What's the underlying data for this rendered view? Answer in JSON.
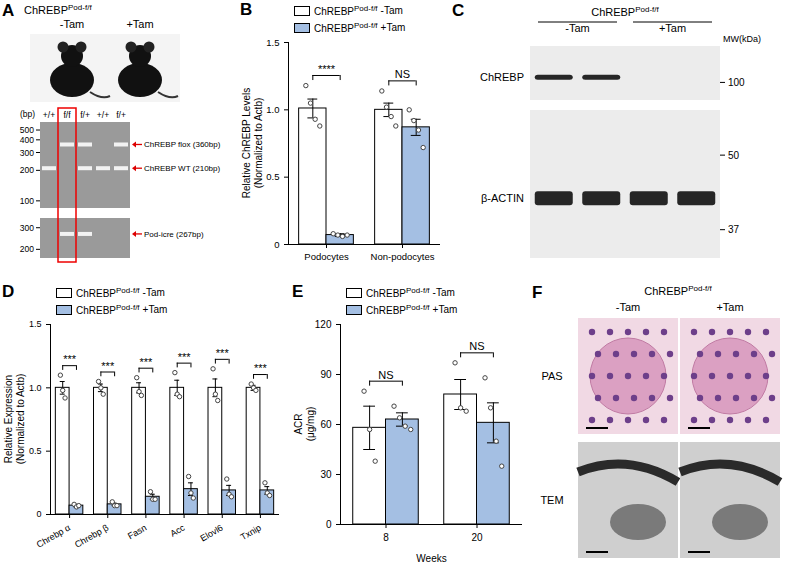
{
  "chart_data": [
    {
      "panel": "B",
      "type": "bar",
      "ylabel": "Relative ChREBP Levels (Normalized to Actb)",
      "categories": [
        "Podocytes",
        "Non-podocytes"
      ],
      "ylim": [
        0,
        1.5
      ],
      "yticks": [
        0,
        0.5,
        {
          "value": 1,
          "label": "1.0"
        },
        1.5
      ],
      "legend": "top",
      "genotype": "ChREBP",
      "genotype_sup": "Pod-f/f",
      "series": [
        {
          "name": "-Tam",
          "color": "#ffffff",
          "values": [
            1.01,
            1.0
          ],
          "errors": [
            0.07,
            0.05
          ],
          "points": [
            [
              1.18,
              1.05,
              0.93,
              0.88
            ],
            [
              1.14,
              1.02,
              0.95,
              0.88
            ]
          ]
        },
        {
          "name": "+Tam",
          "color": "#a4bfe3",
          "values": [
            0.07,
            0.87
          ],
          "errors": [
            0.01,
            0.06
          ],
          "points": [
            [
              0.08,
              0.07,
              0.06,
              0.07
            ],
            [
              1.0,
              0.92,
              0.85,
              0.72
            ]
          ]
        }
      ],
      "annotations": [
        {
          "category": "Podocytes",
          "text": "****"
        },
        {
          "category": "Non-podocytes",
          "text": "NS"
        }
      ]
    },
    {
      "panel": "D",
      "type": "bar",
      "ylabel": "Relative Expression (Normalized to Actb)",
      "categories": [
        "Chrebp α",
        "Chrebp β",
        "Fasn",
        "Acc",
        "Elovl6",
        "Txnip"
      ],
      "ylim": [
        0,
        1.5
      ],
      "yticks": [
        0,
        0.5,
        {
          "value": 1,
          "label": "1.0"
        },
        1.5
      ],
      "legend": "top",
      "genotype": "ChREBP",
      "genotype_sup": "Pod-f/f",
      "series": [
        {
          "name": "-Tam",
          "color": "#ffffff",
          "values": [
            1.0,
            1.0,
            1.0,
            1.0,
            1.0,
            1.0
          ],
          "errors": [
            0.05,
            0.03,
            0.04,
            0.06,
            0.07,
            0.02
          ],
          "points": [
            [
              1.1,
              0.98,
              0.92
            ],
            [
              1.05,
              1.0,
              0.95
            ],
            [
              1.08,
              0.97,
              0.94
            ],
            [
              1.12,
              0.95,
              0.93
            ],
            [
              1.15,
              0.95,
              0.9
            ],
            [
              1.03,
              1.0,
              0.98
            ]
          ]
        },
        {
          "name": "+Tam",
          "color": "#a4bfe3",
          "values": [
            0.07,
            0.08,
            0.14,
            0.2,
            0.19,
            0.19
          ],
          "errors": [
            0.01,
            0.01,
            0.02,
            0.05,
            0.04,
            0.03
          ],
          "points": [
            [
              0.08,
              0.06,
              0.07
            ],
            [
              0.1,
              0.07,
              0.07
            ],
            [
              0.18,
              0.12,
              0.12
            ],
            [
              0.3,
              0.17,
              0.13
            ],
            [
              0.28,
              0.16,
              0.14
            ],
            [
              0.25,
              0.17,
              0.15
            ]
          ]
        }
      ],
      "annotations": [
        {
          "category": "Chrebp α",
          "text": "***"
        },
        {
          "category": "Chrebp β",
          "text": "***"
        },
        {
          "category": "Fasn",
          "text": "***"
        },
        {
          "category": "Acc",
          "text": "***"
        },
        {
          "category": "Elovl6",
          "text": "***"
        },
        {
          "category": "Txnip",
          "text": "***"
        }
      ]
    },
    {
      "panel": "E",
      "type": "bar",
      "ylabel": "ACR (μg/mg)",
      "xlabel": "Weeks",
      "categories": [
        "8",
        "20"
      ],
      "ylim": [
        0,
        120
      ],
      "yticks": [
        0,
        30,
        60,
        90,
        120
      ],
      "legend": "top",
      "genotype": "ChREBP",
      "genotype_sup": "Pod-f/f",
      "series": [
        {
          "name": "-Tam",
          "color": "#ffffff",
          "values": [
            58,
            78
          ],
          "errors": [
            13,
            9
          ],
          "points": [
            [
              80,
              57,
              38
            ],
            [
              97,
              70,
              68
            ]
          ]
        },
        {
          "name": "+Tam",
          "color": "#a4bfe3",
          "values": [
            63,
            61
          ],
          "errors": [
            4,
            12
          ],
          "points": [
            [
              71,
              64,
              59,
              57
            ],
            [
              88,
              70,
              50,
              35
            ]
          ]
        }
      ],
      "annotations": [
        {
          "category": "8",
          "text": "NS"
        },
        {
          "category": "20",
          "text": "NS"
        }
      ]
    }
  ],
  "figure": {
    "A": {
      "panel": "A",
      "genotype": "ChREBP",
      "genotype_sup": "Pod-f/f",
      "conditions": [
        "-Tam",
        "+Tam"
      ],
      "gel_unit": "(bp)",
      "lanes": [
        "+/+",
        "f/f",
        "f/+",
        "+/+",
        "f/+"
      ],
      "highlight_lane": 1,
      "gels": [
        {
          "ladder": [
            500,
            400,
            300,
            200,
            100
          ],
          "bands": [
            {
              "size": 360,
              "label": "ChREBP flox (360bp)",
              "lanes": [
                1,
                2,
                4
              ]
            },
            {
              "size": 210,
              "label": "ChREBP WT (210bp)",
              "lanes": [
                0,
                2,
                3,
                4
              ]
            }
          ]
        },
        {
          "ladder": [
            300,
            200
          ],
          "bands": [
            {
              "size": 267,
              "label": "Pod-icre (267bp)",
              "lanes": [
                1,
                2
              ]
            }
          ]
        }
      ]
    },
    "C": {
      "panel": "C",
      "genotype": "ChREBP",
      "genotype_sup": "Pod-f/f",
      "conditions": [
        "-Tam",
        "+Tam"
      ],
      "mw_label": "MW(kDa)",
      "blots": [
        {
          "label": "ChREBP",
          "band": 105,
          "lanes": [
            0,
            1
          ],
          "mw": [
            100
          ]
        },
        {
          "label": "β-ACTIN",
          "band": 42,
          "lanes": [
            0,
            1,
            2,
            3
          ],
          "mw": [
            50,
            37
          ]
        }
      ]
    },
    "F": {
      "panel": "F",
      "genotype": "ChREBP",
      "genotype_sup": "Pod-f/f",
      "conditions": [
        "-Tam",
        "+Tam"
      ],
      "rows": [
        "PAS",
        "TEM"
      ]
    }
  }
}
